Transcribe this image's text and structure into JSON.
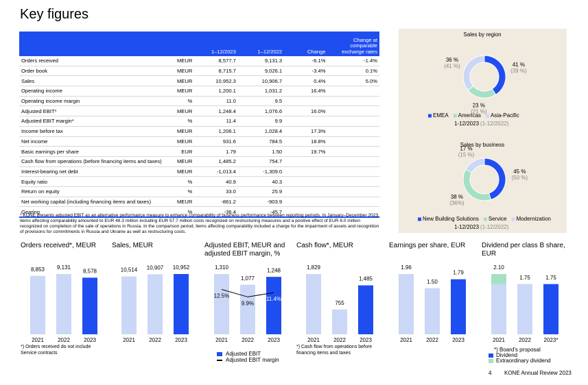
{
  "title": "Key figures",
  "table": {
    "header": [
      null,
      null,
      "1–12/2023",
      "1–12/2022",
      "Change",
      "Change at comparable exchange rates"
    ],
    "rows": [
      [
        "Orders received",
        "MEUR",
        "8,577.7",
        "9,131.3",
        "-6.1%",
        "-1.4%"
      ],
      [
        "Order book",
        "MEUR",
        "8,715.7",
        "9,026.1",
        "-3.4%",
        "0.1%"
      ],
      [
        "Sales",
        "MEUR",
        "10,952.3",
        "10,906.7",
        "0.4%",
        "5.0%"
      ],
      [
        "Operating income",
        "MEUR",
        "1,200.1",
        "1,031.2",
        "16.4%",
        null
      ],
      [
        "Operating income margin",
        "%",
        "11.0",
        "9.5",
        null,
        null
      ],
      [
        "Adjusted EBIT*",
        "MEUR",
        "1,248.4",
        "1,076.6",
        "16.0%",
        null
      ],
      [
        "Adjusted EBIT margin*",
        "%",
        "11.4",
        "9.9",
        null,
        null
      ],
      [
        "Income before tax",
        "MEUR",
        "1,206.1",
        "1,028.4",
        "17.3%",
        null
      ],
      [
        "Net income",
        "MEUR",
        "931.6",
        "784.5",
        "18.8%",
        null
      ],
      [
        "Basic earnings per share",
        "EUR",
        "1.79",
        "1.50",
        "19.7%",
        null
      ],
      [
        "Cash flow from operations (before financing items and taxes)",
        "MEUR",
        "1,485.2",
        "754.7",
        null,
        null
      ],
      [
        "Interest-bearing net debt",
        "MEUR",
        "-1,013.4",
        "-1,309.0",
        null,
        null
      ],
      [
        "Equity ratio",
        "%",
        "40.9",
        "40.3",
        null,
        null
      ],
      [
        "Return on equity",
        "%",
        "33.0",
        "25.9",
        null,
        null
      ],
      [
        "Net working capital (including financing items and taxes)",
        "MEUR",
        "-861.2",
        "-903.9",
        null,
        null
      ],
      [
        "Gearing",
        "%",
        "-36.4",
        "-45.7",
        null,
        null
      ]
    ]
  },
  "footnote": "* KONE presents adjusted EBIT as an alternative performance measure to enhance comparability of business performance between reporting periods. In January–December 2023, items affecting comparability amounted to EUR 48.3 million including EUR 57.7 million costs recognized on restructuring measures and a positive effect of EUR 8.0 million recognized on completion of the sale of operations in Russia. In the comparison period, items affecting comparability included a charge for the impairment of assets and recognition of provisions for commitments in Russia and Ukraine as well as restructuring costs.",
  "donuts": [
    {
      "type": "pie",
      "title": "Sales by region",
      "period": "1-12/2023",
      "prior_period": "(1-12/2022)",
      "series": [
        {
          "name": "EMEA",
          "color": "#1f4ef0",
          "value": 41,
          "value_label": "41 %",
          "prior_value": 39,
          "prior_label": "(39 %)"
        },
        {
          "name": "Americas",
          "color": "#a6e0c4",
          "value": 23,
          "value_label": "23 %",
          "prior_value": 21,
          "prior_label": "(21 %)"
        },
        {
          "name": "Asia-Pacific",
          "color": "#cbd7f6",
          "value": 36,
          "value_label": "36 %",
          "prior_value": 41,
          "prior_label": "(41 %)"
        }
      ]
    },
    {
      "type": "pie",
      "title": "Sales by business",
      "period": "1-12/2023",
      "prior_period": "(1-12/2022)",
      "series": [
        {
          "name": "New Building Solutions",
          "color": "#1f4ef0",
          "value": 45,
          "value_label": "45 %",
          "prior_value": 50,
          "prior_label": "(50 %)"
        },
        {
          "name": "Service",
          "color": "#a6e0c4",
          "value": 38,
          "value_label": "38 %",
          "prior_value": 36,
          "prior_label": "(36%)"
        },
        {
          "name": "Modernization",
          "color": "#cbd7f6",
          "value": 17,
          "value_label": "17 %",
          "prior_value": 15,
          "prior_label": "(15 %)"
        }
      ]
    }
  ],
  "charts": [
    {
      "type": "bar",
      "title": "Orders received*, MEUR",
      "categories": [
        "2021",
        "2022",
        "2023"
      ],
      "values": [
        8853,
        9131,
        8578
      ],
      "value_labels": [
        "8,853",
        "9,131",
        "8,578"
      ],
      "colors": [
        "#cbd7f6",
        "#cbd7f6",
        "#1f4ef0"
      ],
      "note": "*) Orders received do not include Service contracts"
    },
    {
      "type": "bar",
      "title": "Sales, MEUR",
      "categories": [
        "2021",
        "2022",
        "2023"
      ],
      "values": [
        10514,
        10907,
        10952
      ],
      "value_labels": [
        "10,514",
        "10,907",
        "10,952"
      ],
      "colors": [
        "#cbd7f6",
        "#cbd7f6",
        "#1f4ef0"
      ]
    },
    {
      "type": "barline",
      "title": "Adjusted EBIT, MEUR and adjusted EBIT margin, %",
      "categories": [
        "2021",
        "2022",
        "2023"
      ],
      "series": [
        {
          "name": "Adjusted EBIT",
          "color": "#1f4ef0",
          "values": [
            1310,
            1077,
            1248
          ],
          "value_labels": [
            "1,310",
            "1,077",
            "1,248"
          ],
          "colors": [
            "#cbd7f6",
            "#cbd7f6",
            "#1f4ef0"
          ]
        },
        {
          "name": "Adjusted EBIT margin",
          "color": "#000000",
          "values": [
            12.5,
            9.9,
            11.4
          ],
          "value_labels": [
            "12.5%",
            "9.9%",
            "11.4%"
          ]
        }
      ]
    },
    {
      "type": "bar",
      "title": "Cash flow*, MEUR",
      "categories": [
        "2021",
        "2022",
        "2023"
      ],
      "values": [
        1829,
        755,
        1485
      ],
      "value_labels": [
        "1,829",
        "755",
        "1,485"
      ],
      "colors": [
        "#cbd7f6",
        "#cbd7f6",
        "#1f4ef0"
      ],
      "note": "*) Cash flow from operations before financing items and taxes"
    },
    {
      "type": "bar",
      "title": "Earnings per share, EUR",
      "categories": [
        "2021",
        "2022",
        "2023"
      ],
      "values": [
        1.96,
        1.5,
        1.79
      ],
      "value_labels": [
        "1.96",
        "1.50",
        "1.79"
      ],
      "colors": [
        "#cbd7f6",
        "#cbd7f6",
        "#1f4ef0"
      ]
    },
    {
      "type": "stacked",
      "title": "Dividend per class B share, EUR",
      "categories": [
        "2021",
        "2022",
        "2023*"
      ],
      "total_labels": [
        "2.10",
        "1.75",
        "1.75"
      ],
      "note": "*) Board's proposal",
      "series": [
        {
          "name": "Dividend",
          "color": "#1f4ef0",
          "values": [
            1.75,
            1.75,
            1.75
          ],
          "colors": [
            "#cbd7f6",
            "#cbd7f6",
            "#1f4ef0"
          ]
        },
        {
          "name": "Extraordinary dividend",
          "color": "#a6e0c4",
          "values": [
            0.35,
            null,
            null
          ]
        }
      ]
    }
  ],
  "footer": {
    "page": "4",
    "publication": "KONE Annual Review 2023"
  }
}
